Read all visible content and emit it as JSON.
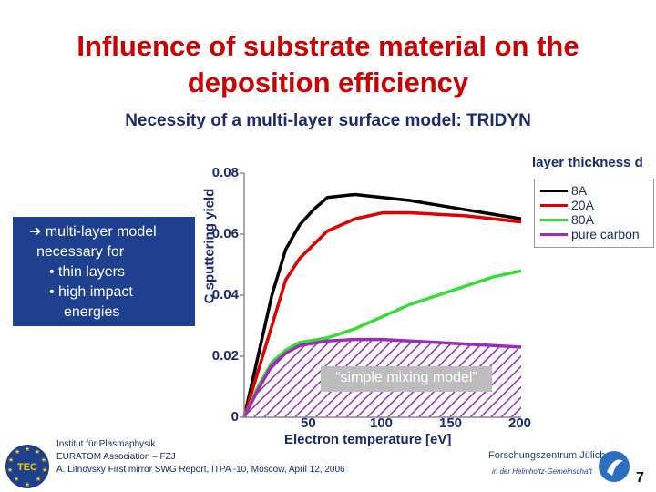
{
  "title_line1": "Influence of substrate material on the",
  "title_line2": "deposition efficiency",
  "subtitle": "Necessity of a multi-layer surface model: TRIDYN",
  "callout": {
    "line1": "➔ multi-layer model",
    "line2": "necessary for",
    "line3": "• thin layers",
    "line4": "• high impact",
    "line5": "energies"
  },
  "mixing_label": "“simple mixing model”",
  "footer": {
    "institute": "Institut für Plasmaphysik",
    "association": "EURATOM Association – FZJ",
    "report": "A. Litnovsky First mirror SWG Report, ITPA -10, Moscow, April 12, 2006",
    "fz_name": "Forschungszentrum Jülich",
    "fz_sub": "in der Helmholtz-Gemeinschaft",
    "tec_logo": "TEC",
    "page": "7"
  },
  "colors": {
    "title": "#cc0000",
    "text": "#1a2a6e",
    "callout_bg": "#1f3f8f",
    "hatch": "#9b2db8"
  },
  "chart_data": {
    "type": "line",
    "title": "",
    "xlabel": "Electron temperature [eV]",
    "ylabel": "C sputtering yield",
    "xlim": [
      0,
      200
    ],
    "ylim": [
      0,
      0.08
    ],
    "x_ticks": [
      {
        "value": 50,
        "label": "50"
      },
      {
        "value": 100,
        "label": "100"
      },
      {
        "value": 150,
        "label": "150"
      },
      {
        "value": 200,
        "label": "200"
      }
    ],
    "y_ticks": [
      {
        "value": 0,
        "label": "0"
      },
      {
        "value": 0.02,
        "label": "0.02"
      },
      {
        "value": 0.04,
        "label": "0.04"
      },
      {
        "value": 0.06,
        "label": "0.06"
      },
      {
        "value": 0.08,
        "label": "0.08"
      }
    ],
    "legend_title": "layer thickness d",
    "legend_position": "top-right",
    "series": [
      {
        "name": "8A",
        "color": "#000000",
        "x": [
          0,
          10,
          20,
          30,
          40,
          50,
          60,
          80,
          100,
          120,
          140,
          160,
          180,
          200
        ],
        "y": [
          0,
          0.02,
          0.04,
          0.055,
          0.063,
          0.068,
          0.072,
          0.073,
          0.072,
          0.071,
          0.0695,
          0.068,
          0.0665,
          0.065
        ]
      },
      {
        "name": "20A",
        "color": "#e00000",
        "x": [
          0,
          10,
          20,
          30,
          40,
          60,
          80,
          100,
          120,
          140,
          160,
          180,
          200
        ],
        "y": [
          0,
          0.015,
          0.03,
          0.045,
          0.052,
          0.061,
          0.065,
          0.067,
          0.067,
          0.0665,
          0.066,
          0.065,
          0.064
        ]
      },
      {
        "name": "80A",
        "color": "#33dd33",
        "x": [
          0,
          10,
          20,
          30,
          40,
          60,
          80,
          100,
          120,
          140,
          160,
          180,
          200
        ],
        "y": [
          0,
          0.01,
          0.018,
          0.022,
          0.0245,
          0.026,
          0.029,
          0.033,
          0.037,
          0.04,
          0.043,
          0.046,
          0.048
        ]
      },
      {
        "name": "pure carbon",
        "color": "#9b2db8",
        "x": [
          0,
          10,
          20,
          30,
          40,
          60,
          80,
          100,
          120,
          140,
          160,
          180,
          200
        ],
        "y": [
          0,
          0.009,
          0.017,
          0.021,
          0.0235,
          0.025,
          0.0255,
          0.0255,
          0.025,
          0.0245,
          0.024,
          0.0235,
          0.023
        ]
      }
    ]
  }
}
